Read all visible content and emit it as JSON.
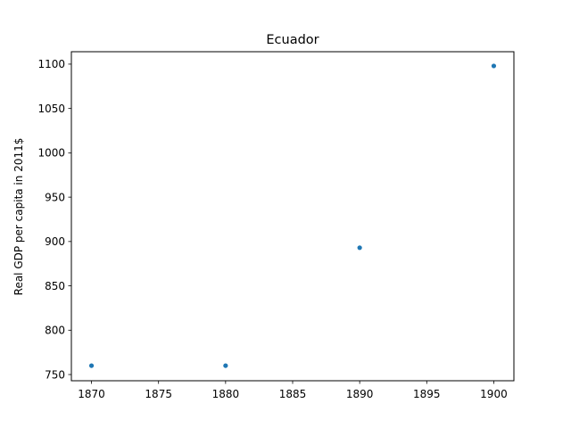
{
  "chart_data": {
    "type": "scatter",
    "title": "Ecuador",
    "xlabel": "",
    "ylabel": "Real GDP per capita in 2011$",
    "xlim": [
      1868.5,
      1901.5
    ],
    "ylim": [
      743,
      1114
    ],
    "xticks": [
      1870,
      1875,
      1880,
      1885,
      1890,
      1895,
      1900
    ],
    "yticks": [
      750,
      800,
      850,
      900,
      950,
      1000,
      1050,
      1100
    ],
    "grid": false,
    "series": [
      {
        "color": "#1f77b4",
        "points": [
          {
            "x": 1870,
            "y": 760
          },
          {
            "x": 1880,
            "y": 760
          },
          {
            "x": 1890,
            "y": 893
          },
          {
            "x": 1900,
            "y": 1098
          }
        ]
      }
    ]
  }
}
